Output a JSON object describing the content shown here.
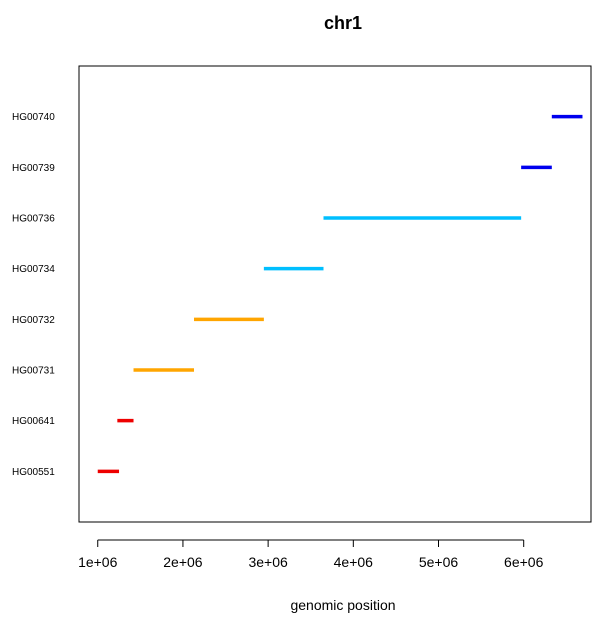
{
  "chart_data": {
    "type": "segment",
    "title": "chr1",
    "xlabel": "genomic position",
    "ylabel": "",
    "x_tick_labels": [
      "1e+06",
      "2e+06",
      "3e+06",
      "4e+06",
      "5e+06",
      "6e+06"
    ],
    "x_ticks": [
      1000000,
      2000000,
      3000000,
      4000000,
      5000000,
      6000000
    ],
    "xlim": [
      780000,
      6790000
    ],
    "ylim": [
      0,
      9
    ],
    "grid": false,
    "legend": "none",
    "categories": [
      "HG00551",
      "HG00641",
      "HG00731",
      "HG00732",
      "HG00734",
      "HG00736",
      "HG00739",
      "HG00740"
    ],
    "segments": [
      {
        "label": "HG00551",
        "start": 1000000,
        "end": 1250000,
        "color": "#ee0000"
      },
      {
        "label": "HG00641",
        "start": 1230000,
        "end": 1420000,
        "color": "#ee0000"
      },
      {
        "label": "HG00731",
        "start": 1420000,
        "end": 2130000,
        "color": "#ffa500"
      },
      {
        "label": "HG00732",
        "start": 2130000,
        "end": 2950000,
        "color": "#ffa500"
      },
      {
        "label": "HG00734",
        "start": 2950000,
        "end": 3650000,
        "color": "#00bfff"
      },
      {
        "label": "HG00736",
        "start": 3650000,
        "end": 5970000,
        "color": "#00bfff"
      },
      {
        "label": "HG00739",
        "start": 5970000,
        "end": 6330000,
        "color": "#0000ee"
      },
      {
        "label": "HG00740",
        "start": 6330000,
        "end": 6690000,
        "color": "#0000ee"
      }
    ]
  }
}
